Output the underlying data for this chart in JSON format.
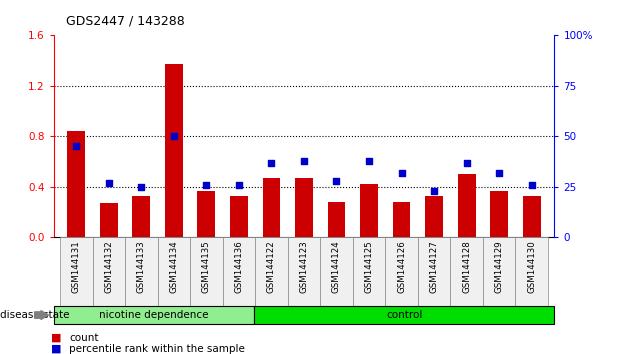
{
  "title": "GDS2447 / 143288",
  "categories": [
    "GSM144131",
    "GSM144132",
    "GSM144133",
    "GSM144134",
    "GSM144135",
    "GSM144136",
    "GSM144122",
    "GSM144123",
    "GSM144124",
    "GSM144125",
    "GSM144126",
    "GSM144127",
    "GSM144128",
    "GSM144129",
    "GSM144130"
  ],
  "counts": [
    0.84,
    0.27,
    0.33,
    1.37,
    0.37,
    0.33,
    0.47,
    0.47,
    0.28,
    0.42,
    0.28,
    0.33,
    0.5,
    0.37,
    0.33
  ],
  "percentiles": [
    45,
    27,
    25,
    50,
    26,
    26,
    37,
    38,
    28,
    38,
    32,
    23,
    37,
    32,
    26
  ],
  "group1_label": "nicotine dependence",
  "group1_count": 6,
  "group2_label": "control",
  "group2_count": 9,
  "bar_color": "#cc0000",
  "dot_color": "#0000cc",
  "ylim_left": [
    0,
    1.6
  ],
  "ylim_right": [
    0,
    100
  ],
  "yticks_left": [
    0,
    0.4,
    0.8,
    1.2,
    1.6
  ],
  "yticks_right": [
    0,
    25,
    50,
    75,
    100
  ],
  "group1_color": "#90ee90",
  "group2_color": "#00dd00",
  "disease_state_label": "disease state",
  "legend_count_label": "count",
  "legend_pct_label": "percentile rank within the sample",
  "grid_pcts": [
    25,
    50,
    75
  ],
  "bg_color": "#f0f0f0"
}
